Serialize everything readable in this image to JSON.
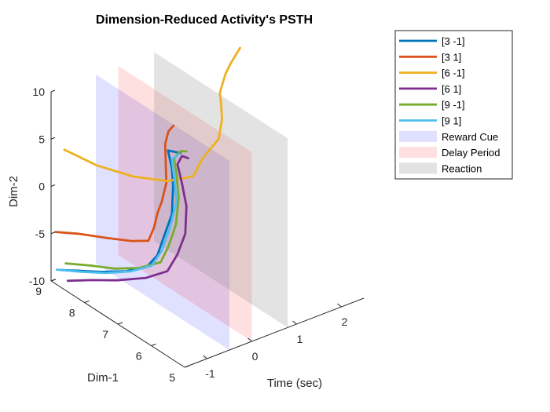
{
  "chart_data": {
    "type": "line",
    "title": "Dimension-Reduced Activity's PSTH",
    "xlabel": "Time (sec)",
    "ylabel": "Dim-2",
    "zlabel": "Dim-1",
    "time_ticks": [
      "-1",
      "0",
      "1",
      "2"
    ],
    "dim2_ticks": [
      "10",
      "5",
      "0",
      "-5",
      "-10"
    ],
    "dim1_ticks": [
      "9",
      "8",
      "7",
      "6",
      "5"
    ],
    "time_lim": [
      -1.5,
      2.5
    ],
    "dim1_lim": [
      5,
      9
    ],
    "dim2_lim": [
      -10,
      10
    ],
    "series": [
      {
        "name": "[3 -1]",
        "color": "#0072BD",
        "points": [
          [
            -1.3,
            9.0,
            -9.2
          ],
          [
            -1.0,
            8.9,
            -9.6
          ],
          [
            -0.6,
            8.7,
            -10.0
          ],
          [
            -0.2,
            8.5,
            -10.2
          ],
          [
            0.2,
            8.4,
            -10.2
          ],
          [
            0.5,
            8.5,
            -9.8
          ],
          [
            0.7,
            8.6,
            -8.7
          ],
          [
            0.9,
            8.6,
            -6.4
          ],
          [
            1.0,
            8.7,
            -3.8
          ],
          [
            0.9,
            8.6,
            -1.6
          ],
          [
            0.85,
            8.65,
            0.3
          ],
          [
            0.95,
            8.6,
            0.1
          ],
          [
            1.05,
            8.55,
            -0.1
          ]
        ]
      },
      {
        "name": "[3 1]",
        "color": "#D95319",
        "points": [
          [
            -1.4,
            9.0,
            -5.0
          ],
          [
            -0.9,
            9.0,
            -6.1
          ],
          [
            -0.4,
            8.8,
            -7.0
          ],
          [
            0.0,
            8.6,
            -7.6
          ],
          [
            0.3,
            8.5,
            -7.9
          ],
          [
            0.5,
            8.6,
            -7.1
          ],
          [
            0.65,
            8.7,
            -6.1
          ],
          [
            0.75,
            8.7,
            -5.0
          ],
          [
            0.7,
            8.5,
            -2.5
          ],
          [
            0.6,
            8.4,
            2.0
          ],
          [
            0.6,
            8.3,
            3.6
          ],
          [
            0.75,
            8.35,
            3.8
          ]
        ]
      },
      {
        "name": "[6 -1]",
        "color": "#EDB120",
        "points": [
          [
            -1.5,
            8.6,
            4.8
          ],
          [
            -1.0,
            8.3,
            2.9
          ],
          [
            -0.4,
            8.0,
            1.3
          ],
          [
            0.2,
            7.8,
            0.2
          ],
          [
            0.7,
            7.7,
            0.0
          ],
          [
            1.0,
            7.8,
            1.2
          ],
          [
            1.2,
            7.6,
            3.3
          ],
          [
            1.2,
            7.5,
            5.6
          ],
          [
            1.1,
            7.4,
            7.8
          ],
          [
            1.0,
            7.3,
            9.2
          ],
          [
            1.2,
            7.4,
            10.6
          ],
          [
            1.4,
            7.5,
            11.2
          ],
          [
            1.6,
            7.5,
            12.4
          ]
        ]
      },
      {
        "name": "[6 1]",
        "color": "#7E2F8E",
        "points": [
          [
            -1.2,
            8.9,
            -10.3
          ],
          [
            -0.8,
            8.7,
            -10.5
          ],
          [
            -0.4,
            8.5,
            -10.8
          ],
          [
            0.1,
            8.3,
            -11.0
          ],
          [
            0.5,
            8.2,
            -10.8
          ],
          [
            0.8,
            8.3,
            -9.8
          ],
          [
            1.05,
            8.4,
            -8.3
          ],
          [
            1.15,
            8.5,
            -5.8
          ],
          [
            1.05,
            8.5,
            -3.2
          ],
          [
            0.95,
            8.5,
            -1.0
          ],
          [
            1.05,
            8.5,
            -0.3
          ],
          [
            1.15,
            8.45,
            -0.6
          ]
        ]
      },
      {
        "name": "[9 -1]",
        "color": "#77AC30",
        "points": [
          [
            -1.1,
            9.1,
            -9.1
          ],
          [
            -0.7,
            8.9,
            -9.6
          ],
          [
            -0.3,
            8.7,
            -10.2
          ],
          [
            0.1,
            8.5,
            -10.4
          ],
          [
            0.5,
            8.4,
            -10.3
          ],
          [
            0.75,
            8.5,
            -9.3
          ],
          [
            0.95,
            8.55,
            -7.5
          ],
          [
            1.05,
            8.6,
            -5.0
          ],
          [
            1.0,
            8.6,
            -2.3
          ],
          [
            0.95,
            8.6,
            -0.6
          ],
          [
            1.05,
            8.55,
            0.1
          ],
          [
            1.15,
            8.5,
            0.0
          ]
        ]
      },
      {
        "name": "[9 1]",
        "color": "#4DBEEE",
        "points": [
          [
            -1.3,
            9.1,
            -9.4
          ],
          [
            -0.9,
            8.9,
            -9.9
          ],
          [
            -0.5,
            8.7,
            -10.3
          ],
          [
            -0.1,
            8.5,
            -10.4
          ],
          [
            0.3,
            8.4,
            -10.3
          ],
          [
            0.6,
            8.5,
            -9.5
          ],
          [
            0.85,
            8.6,
            -7.8
          ],
          [
            1.0,
            8.6,
            -5.3
          ],
          [
            0.95,
            8.6,
            -2.6
          ],
          [
            0.9,
            8.6,
            -0.6
          ],
          [
            1.0,
            8.55,
            -0.2
          ]
        ]
      }
    ],
    "patches": [
      {
        "name": "Reward Cue",
        "color": "#0000ff",
        "alpha": 0.12,
        "time": -0.5
      },
      {
        "name": "Delay Period",
        "color": "#ff0000",
        "alpha": 0.12,
        "time": 0.0
      },
      {
        "name": "Reaction",
        "color": "#808080",
        "alpha": 0.22,
        "time": 0.8
      }
    ]
  }
}
